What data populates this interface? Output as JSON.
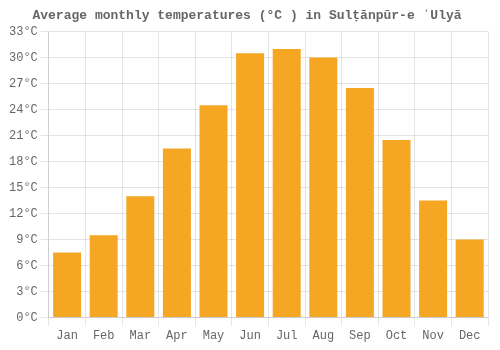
{
  "chart_data": {
    "type": "bar",
    "title": "Average monthly temperatures (°C ) in Sulṭānpūr-e ʿUlyā",
    "categories": [
      "Jan",
      "Feb",
      "Mar",
      "Apr",
      "May",
      "Jun",
      "Jul",
      "Aug",
      "Sep",
      "Oct",
      "Nov",
      "Dec"
    ],
    "values": [
      7.5,
      9.5,
      14.0,
      19.5,
      24.5,
      30.5,
      31.0,
      30.0,
      26.5,
      20.5,
      13.5,
      9.0
    ],
    "color": "#F5A623",
    "ylim": [
      0,
      33
    ],
    "yticks": [
      {
        "value": 0,
        "label": "0°C"
      },
      {
        "value": 3,
        "label": "3°C"
      },
      {
        "value": 6,
        "label": "6°C"
      },
      {
        "value": 9,
        "label": "9°C"
      },
      {
        "value": 12,
        "label": "12°C"
      },
      {
        "value": 15,
        "label": "15°C"
      },
      {
        "value": 18,
        "label": "18°C"
      },
      {
        "value": 21,
        "label": "21°C"
      },
      {
        "value": 24,
        "label": "24°C"
      },
      {
        "value": 27,
        "label": "27°C"
      },
      {
        "value": 30,
        "label": "30°C"
      },
      {
        "value": 33,
        "label": "33°C"
      }
    ],
    "grid": true
  }
}
